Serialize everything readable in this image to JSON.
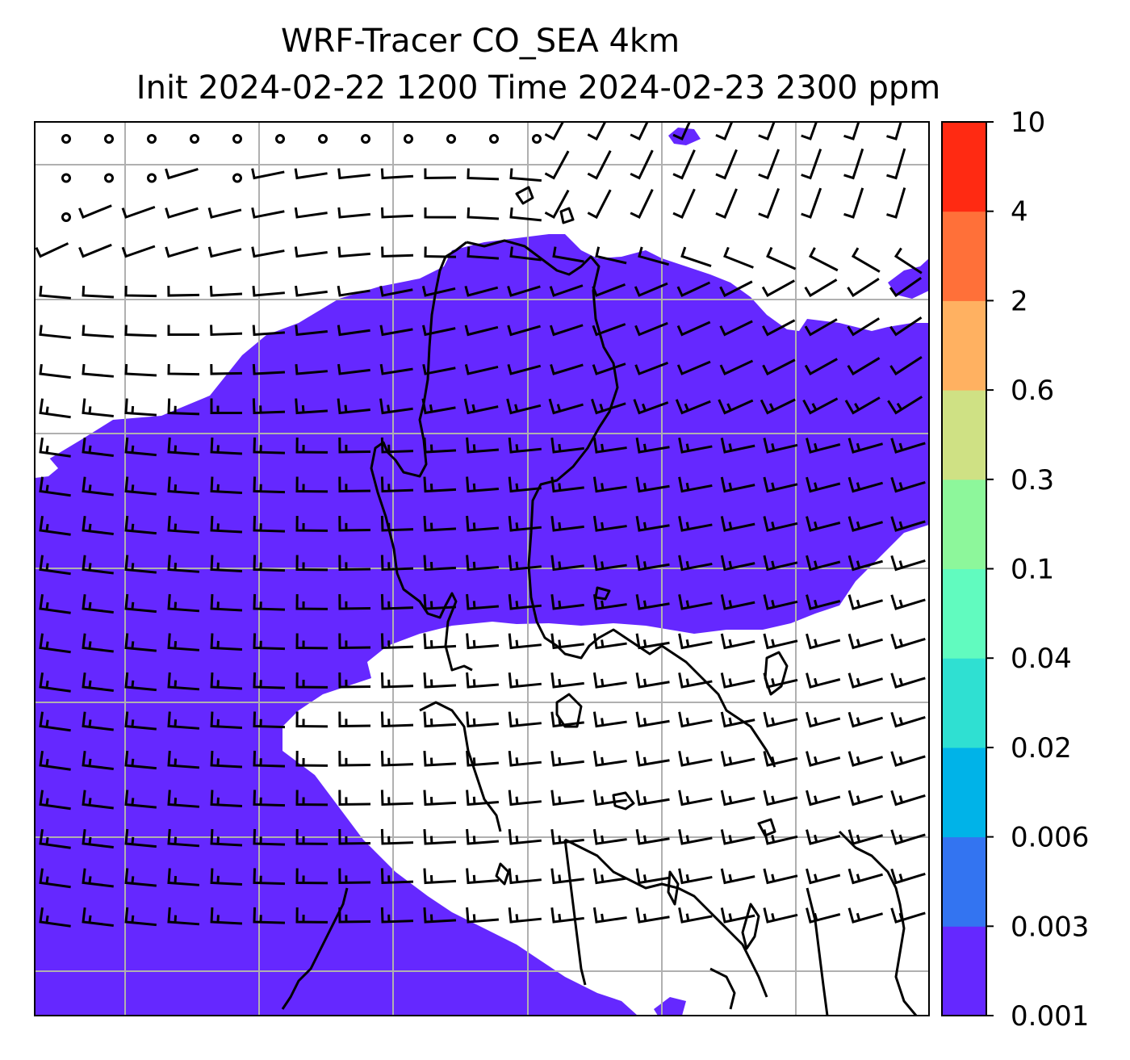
{
  "chart_data": {
    "type": "heatmap",
    "title": "WRF-Tracer CO_SEA 4km",
    "subtitle": "Init 2024-02-22 1200 Time 2024-02-23 2300 ppm",
    "colorbar": {
      "levels": [
        "0.001",
        "0.003",
        "0.006",
        "0.02",
        "0.04",
        "0.1",
        "0.3",
        "0.6",
        "2",
        "4",
        "10"
      ],
      "colors": [
        "#6528ff",
        "#3374f1",
        "#00b3e8",
        "#2fe0d2",
        "#61fbbf",
        "#8df79b",
        "#cfe184",
        "#ffb161",
        "#ff7039",
        "#ff2a12"
      ]
    },
    "field": {
      "shaded_level": "0.001-0.003",
      "shaded_color": "#6528ff",
      "background": "#ffffff"
    },
    "overlays": {
      "wind_barbs": true,
      "coastlines": true,
      "gridlines": true,
      "grid_color": "#b0b0b0"
    }
  }
}
